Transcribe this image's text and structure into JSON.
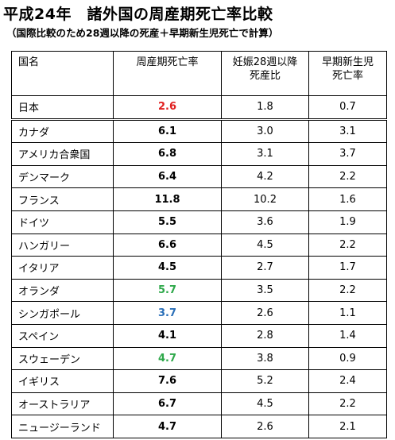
{
  "title": "平成24年　諸外国の周産期死亡率比較",
  "subtitle": "（国際比較のため28週以降の死産＋早期新生児死亡で計算）",
  "table": {
    "headers": [
      "国名",
      "周産期死亡率",
      "妊娠28週以降\n死産比",
      "早期新生児\n死亡率"
    ],
    "rows": [
      {
        "country": "日本",
        "perinatal": "2.6",
        "stillbirth": "1.8",
        "neonatal": "0.7",
        "highlight": "#e02020"
      },
      {
        "country": "カナダ",
        "perinatal": "6.1",
        "stillbirth": "3.0",
        "neonatal": "3.1",
        "highlight": "#000000"
      },
      {
        "country": "アメリカ合衆国",
        "perinatal": "6.8",
        "stillbirth": "3.1",
        "neonatal": "3.7",
        "highlight": "#000000"
      },
      {
        "country": "デンマーク",
        "perinatal": "6.4",
        "stillbirth": "4.2",
        "neonatal": "2.2",
        "highlight": "#000000"
      },
      {
        "country": "フランス",
        "perinatal": "11.8",
        "stillbirth": "10.2",
        "neonatal": "1.6",
        "highlight": "#000000"
      },
      {
        "country": "ドイツ",
        "perinatal": "5.5",
        "stillbirth": "3.6",
        "neonatal": "1.9",
        "highlight": "#000000"
      },
      {
        "country": "ハンガリー",
        "perinatal": "6.6",
        "stillbirth": "4.5",
        "neonatal": "2.2",
        "highlight": "#000000"
      },
      {
        "country": "イタリア",
        "perinatal": "4.5",
        "stillbirth": "2.7",
        "neonatal": "1.7",
        "highlight": "#000000"
      },
      {
        "country": "オランダ",
        "perinatal": "5.7",
        "stillbirth": "3.5",
        "neonatal": "2.2",
        "highlight": "#2ea84a"
      },
      {
        "country": "シンガポール",
        "perinatal": "3.7",
        "stillbirth": "2.6",
        "neonatal": "1.1",
        "highlight": "#2a6fb8"
      },
      {
        "country": "スペイン",
        "perinatal": "4.1",
        "stillbirth": "2.8",
        "neonatal": "1.4",
        "highlight": "#000000"
      },
      {
        "country": "スウェーデン",
        "perinatal": "4.7",
        "stillbirth": "3.8",
        "neonatal": "0.9",
        "highlight": "#2ea84a"
      },
      {
        "country": "イギリス",
        "perinatal": "7.6",
        "stillbirth": "5.2",
        "neonatal": "2.4",
        "highlight": "#000000"
      },
      {
        "country": "オーストラリア",
        "perinatal": "6.7",
        "stillbirth": "4.5",
        "neonatal": "2.2",
        "highlight": "#000000"
      },
      {
        "country": "ニュージーランド",
        "perinatal": "4.7",
        "stillbirth": "2.6",
        "neonatal": "2.1",
        "highlight": "#000000"
      }
    ]
  },
  "chart_data": {
    "type": "table",
    "title": "平成24年　諸外国の周産期死亡率比較",
    "subtitle": "（国際比較のため28週以降の死産＋早期新生児死亡で計算）",
    "columns": [
      "国名",
      "周産期死亡率",
      "妊娠28週以降死産比",
      "早期新生児死亡率"
    ],
    "rows": [
      [
        "日本",
        2.6,
        1.8,
        0.7
      ],
      [
        "カナダ",
        6.1,
        3.0,
        3.1
      ],
      [
        "アメリカ合衆国",
        6.8,
        3.1,
        3.7
      ],
      [
        "デンマーク",
        6.4,
        4.2,
        2.2
      ],
      [
        "フランス",
        11.8,
        10.2,
        1.6
      ],
      [
        "ドイツ",
        5.5,
        3.6,
        1.9
      ],
      [
        "ハンガリー",
        6.6,
        4.5,
        2.2
      ],
      [
        "イタリア",
        4.5,
        2.7,
        1.7
      ],
      [
        "オランダ",
        5.7,
        3.5,
        2.2
      ],
      [
        "シンガポール",
        3.7,
        2.6,
        1.1
      ],
      [
        "スペイン",
        4.1,
        2.8,
        1.4
      ],
      [
        "スウェーデン",
        4.7,
        3.8,
        0.9
      ],
      [
        "イギリス",
        7.6,
        5.2,
        2.4
      ],
      [
        "オーストラリア",
        6.7,
        4.5,
        2.2
      ],
      [
        "ニュージーランド",
        4.7,
        2.6,
        2.1
      ]
    ]
  }
}
